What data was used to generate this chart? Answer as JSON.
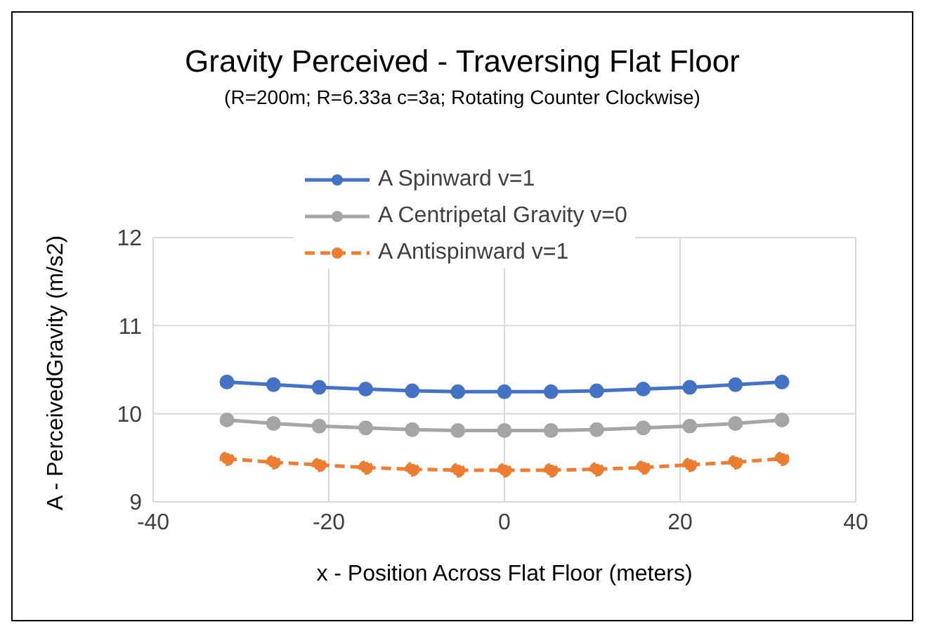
{
  "chart_data": {
    "type": "line",
    "title": "Gravity Perceived - Traversing Flat Floor",
    "subtitle": "(R=200m; R=6.33a c=3a; Rotating Counter Clockwise)",
    "xlabel": "x - Position Across Flat Floor (meters)",
    "ylabel": "A - PerceivedGravity (m/s2)",
    "x": [
      -31.6,
      -26.3,
      -21.1,
      -15.8,
      -10.5,
      -5.3,
      0,
      5.3,
      10.5,
      15.8,
      21.1,
      26.3,
      31.6
    ],
    "series": [
      {
        "name": "A Spinward v=1",
        "color": "#4472c4",
        "line_style": "solid",
        "values": [
          10.36,
          10.33,
          10.3,
          10.28,
          10.26,
          10.25,
          10.25,
          10.25,
          10.26,
          10.28,
          10.3,
          10.33,
          10.36
        ]
      },
      {
        "name": "A Centripetal Gravity v=0",
        "color": "#a5a5a5",
        "line_style": "solid",
        "values": [
          9.93,
          9.89,
          9.86,
          9.84,
          9.82,
          9.81,
          9.81,
          9.81,
          9.82,
          9.84,
          9.86,
          9.89,
          9.93
        ]
      },
      {
        "name": "A Antispinward v=1",
        "color": "#ed7d31",
        "line_style": "dashed",
        "values": [
          9.49,
          9.45,
          9.42,
          9.39,
          9.37,
          9.36,
          9.36,
          9.36,
          9.37,
          9.39,
          9.42,
          9.45,
          9.49
        ]
      }
    ],
    "xlim": [
      -40,
      40
    ],
    "xticks": [
      -40,
      -20,
      0,
      20,
      40
    ],
    "ylim": [
      9,
      12
    ],
    "yticks": [
      9,
      10,
      11,
      12
    ],
    "grid": true,
    "legend": "top",
    "marker": "circle"
  }
}
